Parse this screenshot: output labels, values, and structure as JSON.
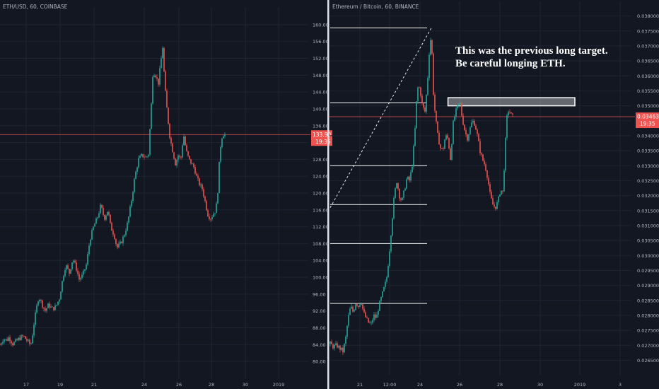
{
  "colors": {
    "background": "#131722",
    "grid": "#1f2433",
    "axis_text": "#b2b5be",
    "up": "#26a69a",
    "down": "#ef5350",
    "price_line": "#ef5350",
    "divider": "#e0e3eb",
    "annotation": "#ffffff"
  },
  "chart_data": [
    {
      "type": "candlestick",
      "title": "ETH/USD, 60, COINBASE",
      "x_ticks": [
        "17",
        "19",
        "21",
        "24",
        "26",
        "28",
        "30",
        "2019"
      ],
      "y_ticks": [
        80,
        84,
        88,
        92,
        96,
        100,
        104,
        108,
        112,
        116,
        120,
        124,
        128,
        132,
        136,
        140,
        144,
        148,
        152,
        156,
        160
      ],
      "ylim": [
        77.5,
        162.5
      ],
      "last_price": "133.90",
      "countdown": "19:35",
      "series": [
        {
          "x": 0.0,
          "y": 84.0
        },
        {
          "x": 0.4,
          "y": 85.5
        },
        {
          "x": 0.7,
          "y": 85.0
        },
        {
          "x": 1.0,
          "y": 85.8
        },
        {
          "x": 1.4,
          "y": 84.2
        },
        {
          "x": 1.8,
          "y": 84.8
        },
        {
          "x": 2.2,
          "y": 85.6
        },
        {
          "x": 2.6,
          "y": 86.0
        },
        {
          "x": 3.0,
          "y": 85.0
        },
        {
          "x": 3.3,
          "y": 84.2
        },
        {
          "x": 3.5,
          "y": 84.4
        },
        {
          "x": 3.7,
          "y": 88.0
        },
        {
          "x": 4.0,
          "y": 92.0
        },
        {
          "x": 4.3,
          "y": 95.5
        },
        {
          "x": 4.6,
          "y": 94.0
        },
        {
          "x": 5.0,
          "y": 92.0
        },
        {
          "x": 5.4,
          "y": 93.5
        },
        {
          "x": 5.8,
          "y": 92.5
        },
        {
          "x": 6.2,
          "y": 93.0
        },
        {
          "x": 6.6,
          "y": 95.0
        },
        {
          "x": 7.0,
          "y": 100.0
        },
        {
          "x": 7.3,
          "y": 103.0
        },
        {
          "x": 7.7,
          "y": 101.0
        },
        {
          "x": 8.1,
          "y": 104.5
        },
        {
          "x": 8.5,
          "y": 102.0
        },
        {
          "x": 8.8,
          "y": 99.5
        },
        {
          "x": 9.2,
          "y": 100.5
        },
        {
          "x": 9.6,
          "y": 103.0
        },
        {
          "x": 10.0,
          "y": 109.0
        },
        {
          "x": 10.4,
          "y": 112.0
        },
        {
          "x": 10.8,
          "y": 114.0
        },
        {
          "x": 11.2,
          "y": 117.0
        },
        {
          "x": 11.6,
          "y": 114.0
        },
        {
          "x": 12.0,
          "y": 116.0
        },
        {
          "x": 12.3,
          "y": 112.0
        },
        {
          "x": 12.7,
          "y": 110.0
        },
        {
          "x": 13.0,
          "y": 107.0
        },
        {
          "x": 13.4,
          "y": 108.0
        },
        {
          "x": 13.8,
          "y": 110.0
        },
        {
          "x": 14.2,
          "y": 113.0
        },
        {
          "x": 14.6,
          "y": 118.0
        },
        {
          "x": 15.0,
          "y": 124.0
        },
        {
          "x": 15.4,
          "y": 128.0
        },
        {
          "x": 15.8,
          "y": 129.0
        },
        {
          "x": 16.2,
          "y": 128.5
        },
        {
          "x": 16.5,
          "y": 129.0
        },
        {
          "x": 16.8,
          "y": 140.0
        },
        {
          "x": 17.0,
          "y": 149.0
        },
        {
          "x": 17.3,
          "y": 148.0
        },
        {
          "x": 17.6,
          "y": 146.0
        },
        {
          "x": 17.9,
          "y": 151.5
        },
        {
          "x": 18.1,
          "y": 155.0
        },
        {
          "x": 18.3,
          "y": 146.0
        },
        {
          "x": 18.6,
          "y": 139.0
        },
        {
          "x": 18.9,
          "y": 133.0
        },
        {
          "x": 19.2,
          "y": 130.0
        },
        {
          "x": 19.5,
          "y": 127.0
        },
        {
          "x": 19.8,
          "y": 129.0
        },
        {
          "x": 20.1,
          "y": 128.0
        },
        {
          "x": 20.4,
          "y": 134.0
        },
        {
          "x": 20.7,
          "y": 130.0
        },
        {
          "x": 21.0,
          "y": 128.0
        },
        {
          "x": 21.3,
          "y": 127.0
        },
        {
          "x": 21.6,
          "y": 126.0
        },
        {
          "x": 21.9,
          "y": 123.5
        },
        {
          "x": 22.2,
          "y": 122.0
        },
        {
          "x": 22.5,
          "y": 121.0
        },
        {
          "x": 22.8,
          "y": 118.0
        },
        {
          "x": 23.1,
          "y": 115.0
        },
        {
          "x": 23.4,
          "y": 114.0
        },
        {
          "x": 23.7,
          "y": 115.0
        },
        {
          "x": 24.0,
          "y": 116.0
        },
        {
          "x": 24.2,
          "y": 120.0
        },
        {
          "x": 24.4,
          "y": 128.0
        },
        {
          "x": 24.6,
          "y": 133.0
        },
        {
          "x": 24.8,
          "y": 134.0
        },
        {
          "x": 25.0,
          "y": 133.9
        }
      ]
    },
    {
      "type": "candlestick",
      "title": "Ethereum / Bitcoin, 60, BINANCE",
      "x_ticks": [
        "21",
        "12:00",
        "24",
        "26",
        "28",
        "30",
        "2019",
        "3"
      ],
      "y_ticks": [
        "0.026500",
        "0.027000",
        "0.027500",
        "0.028000",
        "0.028500",
        "0.029000",
        "0.029500",
        "0.030000",
        "0.030500",
        "0.031000",
        "0.031500",
        "0.032000",
        "0.032500",
        "0.033000",
        "0.033500",
        "0.034000",
        "0.034500",
        "0.035000",
        "0.035500",
        "0.036000",
        "0.036500",
        "0.037000",
        "0.037500",
        "0.038000"
      ],
      "ylim": [
        0.02625,
        0.03825
      ],
      "last_price": "0.034635",
      "countdown": "19:35",
      "annotation": [
        "This was the previous long target.",
        "Be careful longing ETH."
      ],
      "horizontal_levels": [
        0.0376,
        0.0351,
        0.033,
        0.0317,
        0.0304,
        0.0284
      ],
      "target_box": {
        "x0": 18.4,
        "x1": 29.8,
        "y0": 0.035,
        "y1": 0.03527
      },
      "trendline": [
        {
          "x": 0.0,
          "y": 0.0316
        },
        {
          "x": 15.8,
          "y": 0.0376
        }
      ],
      "series": [
        {
          "x": 0.0,
          "y": 0.02705
        },
        {
          "x": 0.5,
          "y": 0.02695
        },
        {
          "x": 1.0,
          "y": 0.027
        },
        {
          "x": 1.5,
          "y": 0.0269
        },
        {
          "x": 2.0,
          "y": 0.0268
        },
        {
          "x": 2.4,
          "y": 0.0272
        },
        {
          "x": 2.8,
          "y": 0.0279
        },
        {
          "x": 3.2,
          "y": 0.0283
        },
        {
          "x": 3.6,
          "y": 0.0281
        },
        {
          "x": 4.0,
          "y": 0.02845
        },
        {
          "x": 4.4,
          "y": 0.0283
        },
        {
          "x": 4.8,
          "y": 0.0285
        },
        {
          "x": 5.2,
          "y": 0.0281
        },
        {
          "x": 5.6,
          "y": 0.0279
        },
        {
          "x": 6.0,
          "y": 0.02775
        },
        {
          "x": 6.4,
          "y": 0.0277
        },
        {
          "x": 6.8,
          "y": 0.028
        },
        {
          "x": 7.2,
          "y": 0.0279
        },
        {
          "x": 7.6,
          "y": 0.0283
        },
        {
          "x": 8.0,
          "y": 0.0286
        },
        {
          "x": 8.4,
          "y": 0.0289
        },
        {
          "x": 8.8,
          "y": 0.0292
        },
        {
          "x": 9.2,
          "y": 0.03
        },
        {
          "x": 9.6,
          "y": 0.031
        },
        {
          "x": 10.0,
          "y": 0.032
        },
        {
          "x": 10.4,
          "y": 0.0325
        },
        {
          "x": 10.8,
          "y": 0.032
        },
        {
          "x": 11.2,
          "y": 0.0318
        },
        {
          "x": 11.6,
          "y": 0.0322
        },
        {
          "x": 12.0,
          "y": 0.0326
        },
        {
          "x": 12.4,
          "y": 0.0325
        },
        {
          "x": 12.8,
          "y": 0.033
        },
        {
          "x": 13.2,
          "y": 0.034
        },
        {
          "x": 13.6,
          "y": 0.0356
        },
        {
          "x": 14.0,
          "y": 0.0356
        },
        {
          "x": 14.4,
          "y": 0.035
        },
        {
          "x": 14.8,
          "y": 0.0348
        },
        {
          "x": 15.2,
          "y": 0.0358
        },
        {
          "x": 15.5,
          "y": 0.0369
        },
        {
          "x": 15.8,
          "y": 0.0374
        },
        {
          "x": 16.1,
          "y": 0.0355
        },
        {
          "x": 16.4,
          "y": 0.0347
        },
        {
          "x": 16.8,
          "y": 0.034
        },
        {
          "x": 17.2,
          "y": 0.0336
        },
        {
          "x": 17.6,
          "y": 0.0335
        },
        {
          "x": 18.0,
          "y": 0.034
        },
        {
          "x": 18.4,
          "y": 0.0339
        },
        {
          "x": 18.8,
          "y": 0.0332
        },
        {
          "x": 19.2,
          "y": 0.0344
        },
        {
          "x": 19.6,
          "y": 0.0348
        },
        {
          "x": 20.0,
          "y": 0.035
        },
        {
          "x": 20.3,
          "y": 0.0351
        },
        {
          "x": 20.6,
          "y": 0.0346
        },
        {
          "x": 21.0,
          "y": 0.0342
        },
        {
          "x": 21.4,
          "y": 0.0339
        },
        {
          "x": 21.8,
          "y": 0.0342
        },
        {
          "x": 22.2,
          "y": 0.0345
        },
        {
          "x": 22.6,
          "y": 0.0344
        },
        {
          "x": 23.0,
          "y": 0.034
        },
        {
          "x": 23.4,
          "y": 0.0335
        },
        {
          "x": 23.8,
          "y": 0.0332
        },
        {
          "x": 24.2,
          "y": 0.033
        },
        {
          "x": 24.6,
          "y": 0.0326
        },
        {
          "x": 25.0,
          "y": 0.032
        },
        {
          "x": 25.4,
          "y": 0.0317
        },
        {
          "x": 25.8,
          "y": 0.0316
        },
        {
          "x": 26.2,
          "y": 0.0318
        },
        {
          "x": 26.6,
          "y": 0.0322
        },
        {
          "x": 27.0,
          "y": 0.0321
        },
        {
          "x": 27.3,
          "y": 0.0335
        },
        {
          "x": 27.6,
          "y": 0.0346
        },
        {
          "x": 27.9,
          "y": 0.0349
        },
        {
          "x": 28.2,
          "y": 0.0347
        },
        {
          "x": 28.5,
          "y": 0.034635
        }
      ]
    }
  ]
}
